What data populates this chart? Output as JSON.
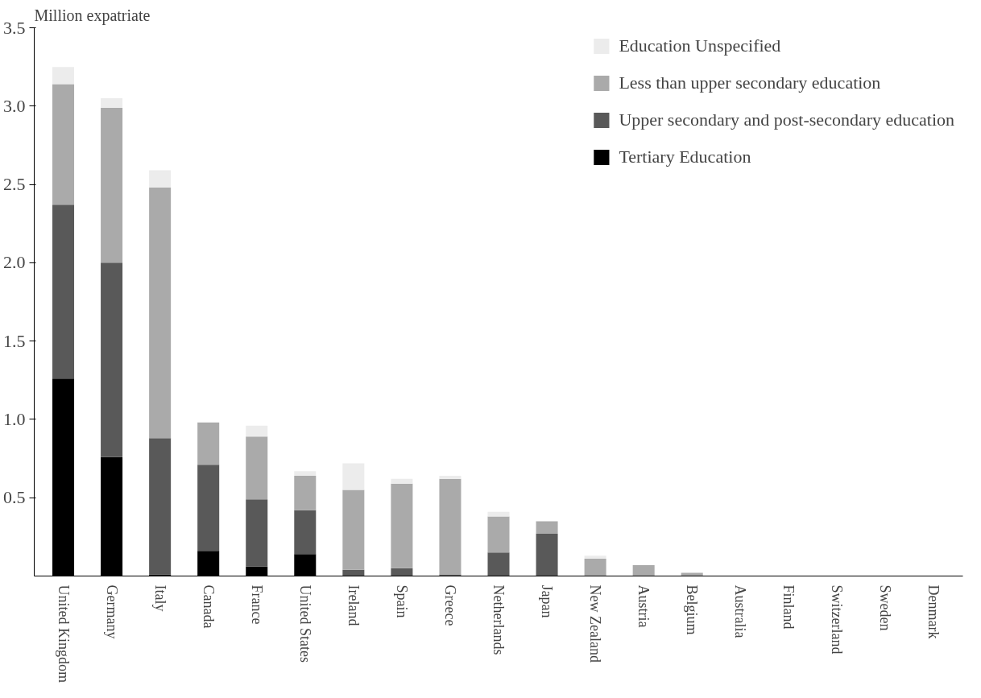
{
  "chart_data": {
    "type": "bar",
    "stacked": true,
    "ylabel": "Million expatriate",
    "categories": [
      "United Kingdom",
      "Germany",
      "Italy",
      "Canada",
      "France",
      "United States",
      "Ireland",
      "Spain",
      "Greece",
      "Netherlands",
      "Japan",
      "New Zealand",
      "Austria",
      "Belgium",
      "Australia",
      "Finland",
      "Switzerland",
      "Sweden",
      "Denmark"
    ],
    "series": [
      {
        "name": "Tertiary Education",
        "color": "#000000",
        "values": [
          1.26,
          0.76,
          0.01,
          0.16,
          0.06,
          0.14,
          0,
          0,
          0,
          0,
          0,
          0,
          0,
          0,
          0,
          0,
          0,
          0,
          0
        ]
      },
      {
        "name": "Upper secondary and post-secondary education",
        "color": "#595959",
        "values": [
          1.11,
          1.24,
          0.87,
          0.55,
          0.43,
          0.28,
          0.04,
          0.05,
          0.01,
          0.15,
          0.27,
          0,
          0,
          0,
          0,
          0,
          0,
          0,
          0
        ]
      },
      {
        "name": "Less than upper secondary education",
        "color": "#aaaaaa",
        "values": [
          0.77,
          0.99,
          1.6,
          0.27,
          0.4,
          0.22,
          0.51,
          0.54,
          0.61,
          0.23,
          0.08,
          0.11,
          0.07,
          0.02,
          0,
          0,
          0,
          0,
          0
        ]
      },
      {
        "name": "Education Unspecified",
        "color": "#ececec",
        "values": [
          0.11,
          0.06,
          0.11,
          0,
          0.07,
          0.03,
          0.17,
          0.03,
          0.02,
          0.03,
          0,
          0.02,
          0,
          0,
          0,
          0,
          0,
          0,
          0
        ]
      }
    ],
    "ylim": [
      0,
      3.5
    ],
    "yticks": [
      {
        "value": 0.5,
        "label": "0.5"
      },
      {
        "value": 1,
        "label": "1.0"
      },
      {
        "value": 1.5,
        "label": "1.5"
      },
      {
        "value": 2,
        "label": "2.0"
      },
      {
        "value": 2.5,
        "label": "2.5"
      },
      {
        "value": 3,
        "label": "3.0"
      },
      {
        "value": 3.5,
        "label": "3.5"
      }
    ],
    "grid": false,
    "legend": "top right"
  }
}
